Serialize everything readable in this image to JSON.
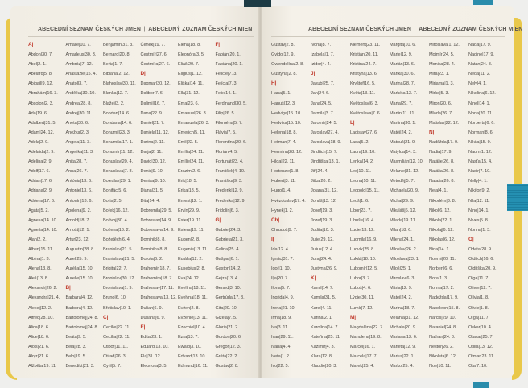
{
  "colors": {
    "letter": "#c0392b",
    "text": "#6a6660",
    "page": "#f4f0e8",
    "cover_edge": "#e9c84a",
    "ribbon": "#2a8cab"
  },
  "pages": [
    {
      "header": {
        "cz": "ABECEDNÍ SEZNAM ČESKÝCH JMEN",
        "separator": "|",
        "sk": "ABECEDNÝ ZOZNAM ČESKÝCH MIEN"
      },
      "columns": [
        [
          "A|",
          "Abdon|30. 7.",
          "Abel|2. 1.",
          "Abelard|5. 8.",
          "Abigail|9. 12.",
          "Abrahám|16. 3.",
          "Absolon|2. 3.",
          "Ada|19. 6.",
          "Adalbert|31. 5.",
          "Adam|24. 12.",
          "Adéla|2. 9.",
          "Adelaida|2. 9.",
          "Adelína|2. 9.",
          "Adolf|17. 6.",
          "Adrian|17. 6.",
          "Adriana|2. 9.",
          "Adriena|17. 6.",
          "Agáta|5. 2.",
          "Agnesa|14. 10.",
          "Agneša|14. 10.",
          "Alan|2. 2.",
          "Albert|15. 11.",
          "Albína|1. 3.",
          "Alena|13. 8.",
          "Aleš|13. 8.",
          "Alexandr|26. 2.",
          "Alexandra|21. 4.",
          "Alexej|12. 2.",
          "Alfréd|28. 10.",
          "Alica|18. 6.",
          "Alice|18. 6.",
          "Alois|21. 6.",
          "Alojz|21. 6.",
          "Alžběta|19. 11."
        ],
        [
          "Amálie|10. 7.",
          "Amadeus|30. 3.",
          "Ambróz|7. 12.",
          "Anastázie|15. 4.",
          "Anatol|3. 7.",
          "Andělka|30. 10.",
          "Andrea|28. 8.",
          "Andrej|30. 11.",
          "Aneta|30. 6.",
          "Anežka|2. 3.",
          "Angela|11. 3.",
          "Angelika|11. 3.",
          "Anita|28. 7.",
          "Anna|26. 7.",
          "Antónia|13. 6.",
          "Antonie|13. 6.",
          "Antonín|13. 6.",
          "Apolena|9. 2.",
          "Arnold|18. 7.",
          "Arnošt|12. 1.",
          "Artur|23. 12.",
          "Augustín|28. 8.",
          "Aurel|25. 9.",
          "Aurélia|15. 10.",
          "Aurelie|15. 10.",
          "B|",
          "Barbara|4. 12.",
          "Barbora|4. 12.",
          "Bartoloměj|24. 8.",
          "Bartolomej|24. 8.",
          "Beáta|9. 5.",
          "Běla|28. 3.",
          "Belo|19. 5.",
          "Benedikt|21. 3."
        ],
        [
          "Benjamín|31. 3.",
          "Bernard|20. 8.",
          "Berta|1. 7.",
          "Bibiána|2. 12.",
          "Blahoslav|30. 11.",
          "Blanka|12. 7.",
          "Blažej|3. 2.",
          "Bohdan|14. 6.",
          "Bohdana|14. 6.",
          "Bohumil|23. 3.",
          "Bohumila|17. 1.",
          "Bohumír|11. 12.",
          "Bohuslav|20. 4.",
          "Bohuslava|7. 8.",
          "Boleslav|29. 1.",
          "Bonifác|5. 6.",
          "Boris|2. 5.",
          "Bořek|16. 12.",
          "Bořivoj|30. 4.",
          "Božena|13. 2.",
          "Božetěch|6. 4.",
          "Branislav|21. 5.",
          "Branislava|21. 5.",
          "Brigita|22. 7.",
          "Bronislav|30. 12.",
          "Bronislava|1. 9.",
          "Bruno|6. 10.",
          "Břetislav|10. 1.",
          "C|",
          "Cecílie|22. 11.",
          "Cecília|22. 11.",
          "Ctibor|11. 11.",
          "Ctirad|26. 3.",
          "Cyril|5. 7."
        ],
        [
          "Čeněk|19. 7.",
          "Čestmír|27. 6.",
          "Čestmíra|27. 6.",
          "D|",
          "Dagmar|30. 12.",
          "Dalibor|7. 6.",
          "Dalimil|16. 7.",
          "Dana|22. 9.",
          "Daniel|21. 7.",
          "Daniela|11. 12.",
          "Darina|2. 11.",
          "Darja|2. 11.",
          "David|30. 12.",
          "Denis|9. 10.",
          "Denisa|9. 10.",
          "Diana|31. 5.",
          "Dita|14. 4.",
          "Dobromila|29. 5.",
          "Dobroslav|14. 9.",
          "Dobroslava|14. 9.",
          "Dominik|8. 8.",
          "Dominika|8. 8.",
          "Dorota|6. 2.",
          "Drahomír|18. 7.",
          "Drahomíra|18. 7.",
          "Drahoslav|17. 11.",
          "Drahoslava|13. 12.",
          "Dušan|6. 9.",
          "Dušana|6. 9.",
          "E|",
          "Edita|23. 1.",
          "Eduard|13. 10.",
          "Ela|31. 12.",
          "Eleonora|3. 5."
        ],
        [
          "Elena|18. 8.",
          "Eleonóra|3. 5.",
          "Eliáš|20. 7.",
          "Eligius|1. 12.",
          "Eliška|14. 11.",
          "Ella|31. 12.",
          "Ema|23. 6.",
          "Emanuel|26. 3.",
          "Emanuela|26. 3.",
          "Emerich|5. 11.",
          "Emil|22. 5.",
          "Emília|24. 11.",
          "Emílie|24. 11.",
          "Erazim|2. 6.",
          "Erik|18. 5.",
          "Erika|18. 5.",
          "Ernest|12. 1.",
          "Ervín|29. 9.",
          "Ester|19. 11.",
          "Estera|19. 11.",
          "Eugen|2. 8.",
          "Eugenie|13. 11.",
          "Eulália|12. 2.",
          "Eusebius|2. 8.",
          "Eva|24. 12.",
          "Evelína|18. 11.",
          "Evelyna|18. 11.",
          "Evžen|2. 8.",
          "Evženie|13. 11.",
          "Ezechiel|10. 4.",
          "Ezra|13. 7.",
          "Ewald|3. 10.",
          "Edvard|13. 10.",
          "Edmund|16. 11."
        ],
        [
          "F|",
          "Fabián|20. 1.",
          "Fabiána|20. 1.",
          "Felicie|7. 3.",
          "Felícia|7. 3.",
          "Felix|14. 1.",
          "Ferdinand|30. 5.",
          "Filip|26. 5.",
          "Filoména|5. 7.",
          "Flávia|7. 5.",
          "Florentína|20. 6.",
          "Florián|4. 5.",
          "Fortunát|23. 4.",
          "František|4. 10.",
          "Františka|9. 3.",
          "Frederik|12. 9.",
          "Frederika|12. 9.",
          "Fridolín|6. 3.",
          "G|",
          "Gabriel|24. 3.",
          "Gabriela|21. 3.",
          "Galina|25. 4.",
          "Gašpar|6. 1.",
          "Gaston|14. 2.",
          "Gejza|13. 4.",
          "Gerard|3. 10.",
          "Gertrúda|17. 3.",
          "Gita|20. 10.",
          "Gizela|7. 5.",
          "Glória|21. 2.",
          "Gordon|20. 6.",
          "Gregor|12. 3.",
          "Gréta|22. 2.",
          "Gustav|2. 8."
        ]
      ]
    },
    {
      "header": {
        "cz": "ABECEDNÍ SEZNAM ČESKÝCH JMEN",
        "separator": "|",
        "sk": "ABECEDNÝ ZOZNAM ČESKÝCH MIEN"
      },
      "columns": [
        [
          "Gustáv|2. 8.",
          "Gvido|12. 9.",
          "Gwendolína|2. 8.",
          "Gustýna|2. 8.",
          "H|",
          "Hana|5. 1.",
          "Hanuš|12. 3.",
          "Hedviga|15. 10.",
          "Hedvika|15. 10.",
          "Helena|18. 8.",
          "Heřman|7. 4.",
          "Hermína|28. 12.",
          "Hilda|22. 11.",
          "Hortenzie|1. 8.",
          "Hubert|3. 11.",
          "Hugo|1. 4.",
          "Hvězdoslav|17. 4.",
          "Hynek|1. 2.",
          "Ch|",
          "Chrudoš|9. 7.",
          "I|",
          "Ida|12. 4.",
          "Ignác|31. 7.",
          "Igor|1. 10.",
          "Ilja|20. 7.",
          "Ilona|5. 7.",
          "Ingrida|4. 9.",
          "Irena|21. 10.",
          "Irma|18. 9.",
          "Iva|3. 11.",
          "Ivan|29. 11.",
          "Ivana|4. 4.",
          "Iveta|1. 2.",
          "Ivo|22. 5."
        ],
        [
          "Ivona|8. 7.",
          "Izabela|1. 7.",
          "Izidor|4. 4.",
          "J|",
          "Jakub|25. 7.",
          "Jan|24. 6.",
          "Jana|24. 5.",
          "Jarmila|3. 7.",
          "Jaromír|24. 5.",
          "Jaroslav|27. 4.",
          "Jaroslava|18. 9.",
          "Jindřich|15. 7.",
          "Jindřiška|13. 1.",
          "Jiří|24. 4.",
          "Jitka|20. 2.",
          "Jolana|31. 12.",
          "Jonáš|13. 12.",
          "Josef|19. 3.",
          "Jozef|19. 3.",
          "Judita|10. 3.",
          "Julie|29. 12.",
          "Julius|12. 4.",
          "Juraj|24. 4.",
          "Justýna|26. 9.",
          "K|",
          "Kamil|14. 7.",
          "Kamila|31. 5.",
          "Karel|4. 11.",
          "Karina|2. 1.",
          "Karolína|14. 7.",
          "Kateřina|25. 11.",
          "Kazimír|4. 3.",
          "Klára|12. 8.",
          "Klaudie|20. 3."
        ],
        [
          "Klement|23. 11.",
          "Kristián|20. 11.",
          "Kristina|24. 7.",
          "Kristýna|13. 6.",
          "Kryštof|16. 5.",
          "Květa|13. 11.",
          "Květoslav|6. 3.",
          "Květoslava|7. 6.",
          "L|",
          "Ladislav|27. 6.",
          "Lada|5. 2.",
          "Laura|19. 10.",
          "Lenka|14. 2.",
          "Leo|10. 11.",
          "Leona|10. 11.",
          "Leopold|15. 11.",
          "Leoš|1. 6.",
          "Libor|23. 7.",
          "Libuše|16. 4.",
          "Lucie|13. 12.",
          "Ludmila|16. 9.",
          "Ludvík|25. 8.",
          "Lukáš|18. 10.",
          "Lubomír|12. 5.",
          "Lubor|3. 7.",
          "Luboš|4. 6.",
          "Lýdie|30. 11.",
          "Lumír|7. 12.",
          "M|",
          "Magdaléna|22. 7.",
          "Mahulena|19. 8.",
          "Marcel|16. 1.",
          "Marcela|17. 7.",
          "Marek|25. 4."
        ],
        [
          "Margita|10. 6.",
          "Marie|12. 9.",
          "Marián|13. 6.",
          "Marika|30. 6.",
          "Marina|28. 7.",
          "Markéta|13. 7.",
          "Marta|29. 7.",
          "Martin|11. 11.",
          "Martina|30. 1.",
          "Matěj|24. 2.",
          "Matouš|21. 9.",
          "Matylda|14. 3.",
          "Maxmilián|12. 10.",
          "Melánie|31. 12.",
          "Metoděj|5. 7.",
          "Michaela|20. 9.",
          "Michal|29. 9.",
          "Mikuláš|6. 12.",
          "Milada|19. 11.",
          "Milan|18. 6.",
          "Milena|24. 1.",
          "Miloslav|26. 2.",
          "Miloslava|23. 1.",
          "Miloš|25. 1.",
          "Miroslav|6. 3.",
          "Mária|12. 9.",
          "Matej|24. 2.",
          "Marína|18. 7.",
          "Melánia|31. 12.",
          "Michala|20. 9.",
          "Mariana|13. 6.",
          "Marieta|12. 9.",
          "Marius|22. 1.",
          "Marko|25. 4."
        ],
        [
          "Miroslava|1. 12.",
          "Mojmír|24. 5.",
          "Monika|28. 4.",
          "Mira|23. 1.",
          "Miriama|1. 3.",
          "Mirko|5. 3.",
          "Miron|20. 6.",
          "Mlada|26. 7.",
          "Mstislav|22. 12.",
          "N|",
          "Naděžda|17. 9.",
          "Nadia|17. 9.",
          "Natálie|26. 8.",
          "Natália|26. 8.",
          "Nataša|26. 8.",
          "Nela|4. 1.",
          "Nikodém|3. 8.",
          "Nikol|6. 12.",
          "Nikola|22. 1.",
          "Nikolaj|6. 12.",
          "Nikolas|6. 12.",
          "Nina|14. 1.",
          "Noemi|20. 11.",
          "Norbert|6. 6.",
          "Nora|1. 3.",
          "Norma|17. 2.",
          "Nadežda|17. 9.",
          "Napoleon|15. 8.",
          "Narcis|29. 10.",
          "Nataniel|24. 8.",
          "Nathan|24. 8.",
          "Nestor|26. 2.",
          "Nikoleta|6. 12.",
          "Noe|10. 11."
        ],
        [
          "Naďa|17. 9.",
          "Nadine|17. 9.",
          "Natan|24. 8.",
          "Neda|11. 2.",
          "Nely|4. 1.",
          "Nikolina|6. 12.",
          "Ninel|14. 1.",
          "Nona|20. 11.",
          "Norberta|6. 6.",
          "Norman|8. 6.",
          "Nikita|15. 9.",
          "Naum|1. 12.",
          "Nasťa|15. 4.",
          "Nadir|7. 10.",
          "Nelly|4. 1.",
          "Nikifor|9. 2.",
          "Nila|12. 11.",
          "Nino|14. 1.",
          "Nives|5. 8.",
          "Norina|1. 3.",
          "O|",
          "Odeta|28. 9.",
          "Oldřich|16. 6.",
          "Oldřiška|20. 9.",
          "Olga|11. 7.",
          "Oliver|12. 7.",
          "Olívia|1. 8.",
          "Olivie|1. 8.",
          "Oľga|11. 7.",
          "Oskar|10. 4.",
          "Otakar|25. 7.",
          "Otília|13. 12.",
          "Otmar|23. 11.",
          "Ota|7. 10."
        ]
      ]
    }
  ]
}
